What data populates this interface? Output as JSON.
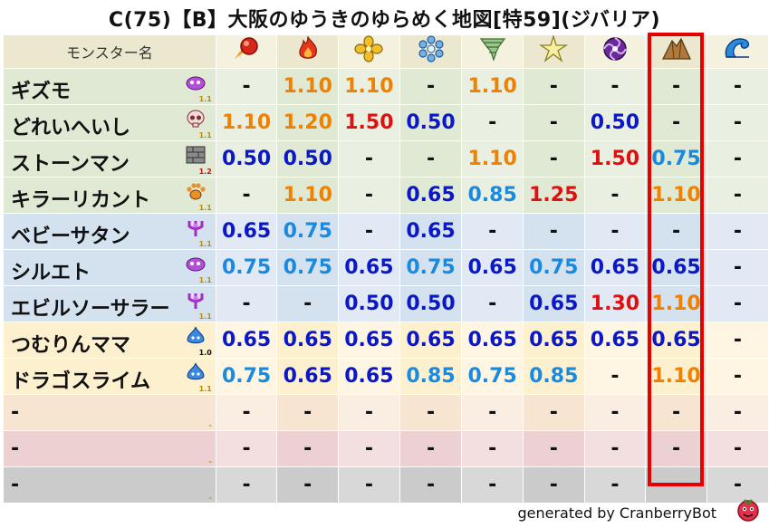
{
  "title": "C(75)【B】大阪のゆうきのゆらめく地図[特59](ジバリア)",
  "header": {
    "name_label": "モンスター名",
    "element_icons": [
      "fire-ball-icon",
      "flame-icon",
      "wind-petals-icon",
      "ice-snowflake-icon",
      "tornado-icon",
      "lightning-star-icon",
      "dark-swirl-icon",
      "earth-rock-icon",
      "water-wave-icon"
    ]
  },
  "colors": {
    "green_row": "#dfe9d4",
    "green_alt": "#e9f0e1",
    "blue_row": "#d4e1ef",
    "blue_alt": "#e1eaf4",
    "yellow_row": "#fdf0cf",
    "yellow_alt": "#fef6e2",
    "orange_row": "#f7e5d2",
    "orange_alt": "#faeee2",
    "pink_row": "#edd0d2",
    "pink_alt": "#f3dfe0",
    "gray_row": "#cbcbcb",
    "gray_alt": "#d8d8d8",
    "header": "#ece8cf",
    "header_alt": "#f4f1de",
    "highlight": "#e60000"
  },
  "rows": [
    {
      "name": "ギズモ",
      "icon": "purple-cloud-icon",
      "level": "1.1",
      "bg": "green",
      "values": [
        "-",
        "1.10",
        "1.10",
        "-",
        "1.10",
        "-",
        "-",
        "-",
        "-"
      ],
      "colors": [
        "dash",
        "orange",
        "orange",
        "dash",
        "orange",
        "dash",
        "dash",
        "dash",
        "dash"
      ]
    },
    {
      "name": "どれいへいし",
      "icon": "skull-icon",
      "level": "1.1",
      "bg": "green",
      "values": [
        "1.10",
        "1.20",
        "1.50",
        "0.50",
        "-",
        "-",
        "0.50",
        "-",
        "-"
      ],
      "colors": [
        "orange",
        "orange",
        "red",
        "blue",
        "dash",
        "dash",
        "blue",
        "dash",
        "dash"
      ]
    },
    {
      "name": "ストーンマン",
      "icon": "brick-icon",
      "level": "1.2",
      "bg": "green",
      "values": [
        "0.50",
        "0.50",
        "-",
        "-",
        "1.10",
        "-",
        "1.50",
        "0.75",
        "-"
      ],
      "colors": [
        "blue",
        "blue",
        "dash",
        "dash",
        "orange",
        "dash",
        "red",
        "lblue",
        "dash"
      ]
    },
    {
      "name": "キラーリカント",
      "icon": "paw-icon",
      "level": "1.1",
      "bg": "green",
      "values": [
        "-",
        "1.10",
        "-",
        "0.65",
        "0.85",
        "1.25",
        "-",
        "1.10",
        "-"
      ],
      "colors": [
        "dash",
        "orange",
        "dash",
        "blue",
        "lblue",
        "red",
        "dash",
        "orange",
        "dash"
      ]
    },
    {
      "name": "ベビーサタン",
      "icon": "trident-icon",
      "level": "1.1",
      "bg": "blue",
      "values": [
        "0.65",
        "0.75",
        "-",
        "0.65",
        "-",
        "-",
        "-",
        "-",
        "-"
      ],
      "colors": [
        "blue",
        "lblue",
        "dash",
        "blue",
        "dash",
        "dash",
        "dash",
        "dash",
        "dash"
      ]
    },
    {
      "name": "シルエト",
      "icon": "purple-cloud-icon",
      "level": "1.1",
      "bg": "blue",
      "values": [
        "0.75",
        "0.75",
        "0.65",
        "0.75",
        "0.65",
        "0.75",
        "0.65",
        "0.65",
        "-"
      ],
      "colors": [
        "lblue",
        "lblue",
        "blue",
        "lblue",
        "blue",
        "lblue",
        "blue",
        "blue",
        "dash"
      ]
    },
    {
      "name": "エビルソーサラー",
      "icon": "trident-icon",
      "level": "1.1",
      "bg": "blue",
      "values": [
        "-",
        "-",
        "0.50",
        "0.50",
        "-",
        "0.65",
        "1.30",
        "1.10",
        "-"
      ],
      "colors": [
        "dash",
        "dash",
        "blue",
        "blue",
        "dash",
        "blue",
        "red",
        "orange",
        "dash"
      ]
    },
    {
      "name": "つむりんママ",
      "icon": "slime-icon",
      "level": "1.0",
      "bg": "yellow",
      "values": [
        "0.65",
        "0.65",
        "0.65",
        "0.65",
        "0.65",
        "0.65",
        "0.65",
        "0.65",
        "-"
      ],
      "colors": [
        "blue",
        "blue",
        "blue",
        "blue",
        "blue",
        "blue",
        "blue",
        "blue",
        "dash"
      ]
    },
    {
      "name": "ドラゴスライム",
      "icon": "slime-icon",
      "level": "1.1",
      "bg": "yellow",
      "values": [
        "0.75",
        "0.65",
        "0.65",
        "0.85",
        "0.75",
        "0.85",
        "-",
        "1.10",
        "-"
      ],
      "colors": [
        "lblue",
        "blue",
        "blue",
        "lblue",
        "lblue",
        "lblue",
        "dash",
        "orange",
        "dash"
      ]
    },
    {
      "name": "-",
      "icon": "",
      "level": "-",
      "bg": "orange",
      "values": [
        "-",
        "-",
        "-",
        "-",
        "-",
        "-",
        "-",
        "-",
        "-"
      ],
      "colors": [
        "dash",
        "dash",
        "dash",
        "dash",
        "dash",
        "dash",
        "dash",
        "dash",
        "dash"
      ]
    },
    {
      "name": "-",
      "icon": "",
      "level": "-",
      "bg": "pink",
      "values": [
        "-",
        "-",
        "-",
        "-",
        "-",
        "-",
        "-",
        "-",
        "-"
      ],
      "colors": [
        "dash",
        "dash",
        "dash",
        "dash",
        "dash",
        "dash",
        "dash",
        "dash",
        "dash"
      ]
    },
    {
      "name": "-",
      "icon": "",
      "level": "-",
      "bg": "gray",
      "values": [
        "-",
        "-",
        "-",
        "-",
        "-",
        "-",
        "-",
        "-",
        "-"
      ],
      "colors": [
        "dash",
        "dash",
        "dash",
        "dash",
        "dash",
        "dash",
        "dash",
        "dash",
        "dash"
      ]
    }
  ],
  "highlighted_column": 7,
  "footer": {
    "generated": "generated by CranberryBot",
    "logo_icon": "cranberry-logo-icon"
  }
}
